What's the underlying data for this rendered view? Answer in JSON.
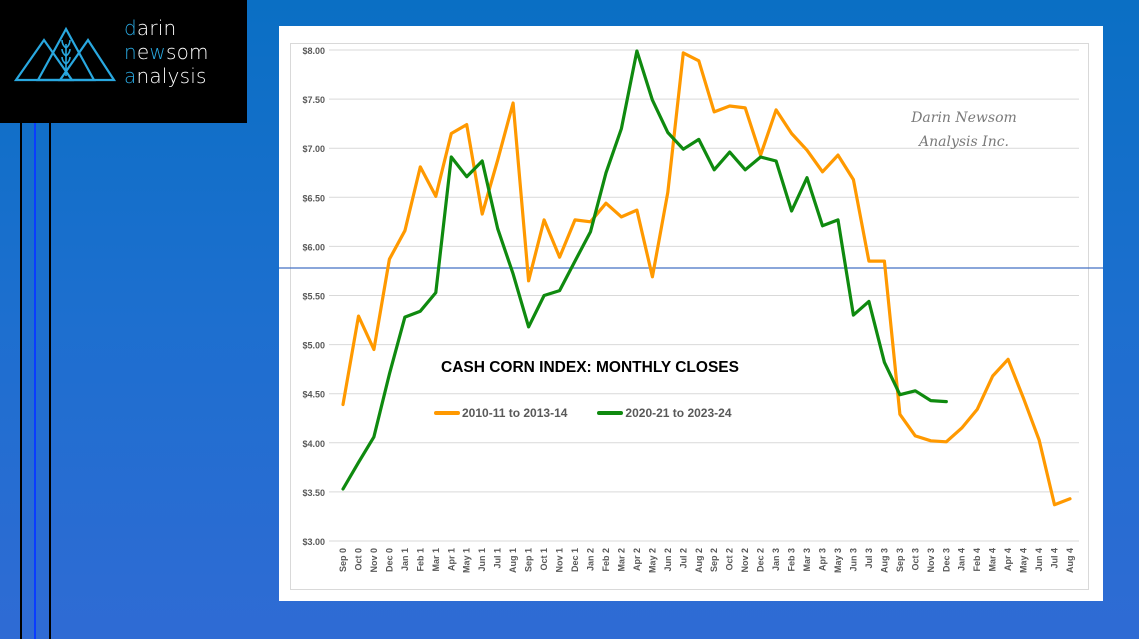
{
  "logo": {
    "lines": [
      {
        "first": "d",
        "rest": "arin"
      },
      {
        "first": "n",
        "mid_plain": "e",
        "mid_hl": "w",
        "rest": "som"
      },
      {
        "first": "a",
        "rest": "nalysis"
      }
    ],
    "accent_color": "#29a8e0"
  },
  "watermark": {
    "line1": "Darin Newsom",
    "line2": "Analysis Inc."
  },
  "chart_data": {
    "type": "line",
    "title": "CASH CORN INDEX: MONTHLY CLOSES",
    "xlabel": "",
    "ylabel": "",
    "ylim": [
      3.0,
      8.0
    ],
    "yticks": [
      3.0,
      3.5,
      4.0,
      4.5,
      5.0,
      5.5,
      6.0,
      6.5,
      7.0,
      7.5,
      8.0
    ],
    "ytick_labels": [
      "$3.00",
      "$3.50",
      "$4.00",
      "$4.50",
      "$5.00",
      "$5.50",
      "$6.00",
      "$6.50",
      "$7.00",
      "$7.50",
      "$8.00"
    ],
    "grid": true,
    "legend_position": "center",
    "reference_line": {
      "value": 5.78,
      "color": "#4472c4"
    },
    "categories": [
      "Sep 0",
      "Oct 0",
      "Nov 0",
      "Dec 0",
      "Jan 1",
      "Feb 1",
      "Mar 1",
      "Apr 1",
      "May 1",
      "Jun 1",
      "Jul 1",
      "Aug 1",
      "Sep 1",
      "Oct 1",
      "Nov 1",
      "Dec 1",
      "Jan 2",
      "Feb 2",
      "Mar 2",
      "Apr 2",
      "May 2",
      "Jun 2",
      "Jul 2",
      "Aug 2",
      "Sep 2",
      "Oct 2",
      "Nov 2",
      "Dec 2",
      "Jan 3",
      "Feb 3",
      "Mar 3",
      "Apr 3",
      "May 3",
      "Jun 3",
      "Jul 3",
      "Aug 3",
      "Sep 3",
      "Oct 3",
      "Nov 3",
      "Dec 3",
      "Jan 4",
      "Feb 4",
      "Mar 4",
      "Apr 4",
      "May 4",
      "Jun 4",
      "Jul 4",
      "Aug 4"
    ],
    "series": [
      {
        "name": "2010-11 to 2013-14",
        "color": "#ff9900",
        "values": [
          4.39,
          5.29,
          4.95,
          5.87,
          6.16,
          6.81,
          6.51,
          7.15,
          7.24,
          6.33,
          6.88,
          7.46,
          5.65,
          6.27,
          5.89,
          6.27,
          6.25,
          6.44,
          6.3,
          6.37,
          5.69,
          6.55,
          7.97,
          7.89,
          7.37,
          7.43,
          7.41,
          6.93,
          7.39,
          7.15,
          6.98,
          6.76,
          6.93,
          6.68,
          5.85,
          5.85,
          4.29,
          4.07,
          4.02,
          4.01,
          4.15,
          4.34,
          4.68,
          4.85,
          4.45,
          4.03,
          3.37,
          3.43
        ]
      },
      {
        "name": "2020-21 to 2023-24",
        "color": "#0f8a0f",
        "values": [
          3.53,
          3.8,
          4.06,
          4.7,
          5.28,
          5.34,
          5.53,
          6.91,
          6.71,
          6.87,
          6.18,
          5.72,
          5.18,
          5.5,
          5.55,
          5.85,
          6.15,
          6.75,
          7.2,
          7.99,
          7.49,
          7.16,
          6.99,
          7.09,
          6.78,
          6.96,
          6.78,
          6.91,
          6.87,
          6.36,
          6.7,
          6.21,
          6.27,
          5.3,
          5.44,
          4.82,
          4.49,
          4.53,
          4.43,
          4.42,
          null,
          null,
          null,
          null,
          null,
          null,
          null,
          null
        ]
      }
    ]
  }
}
